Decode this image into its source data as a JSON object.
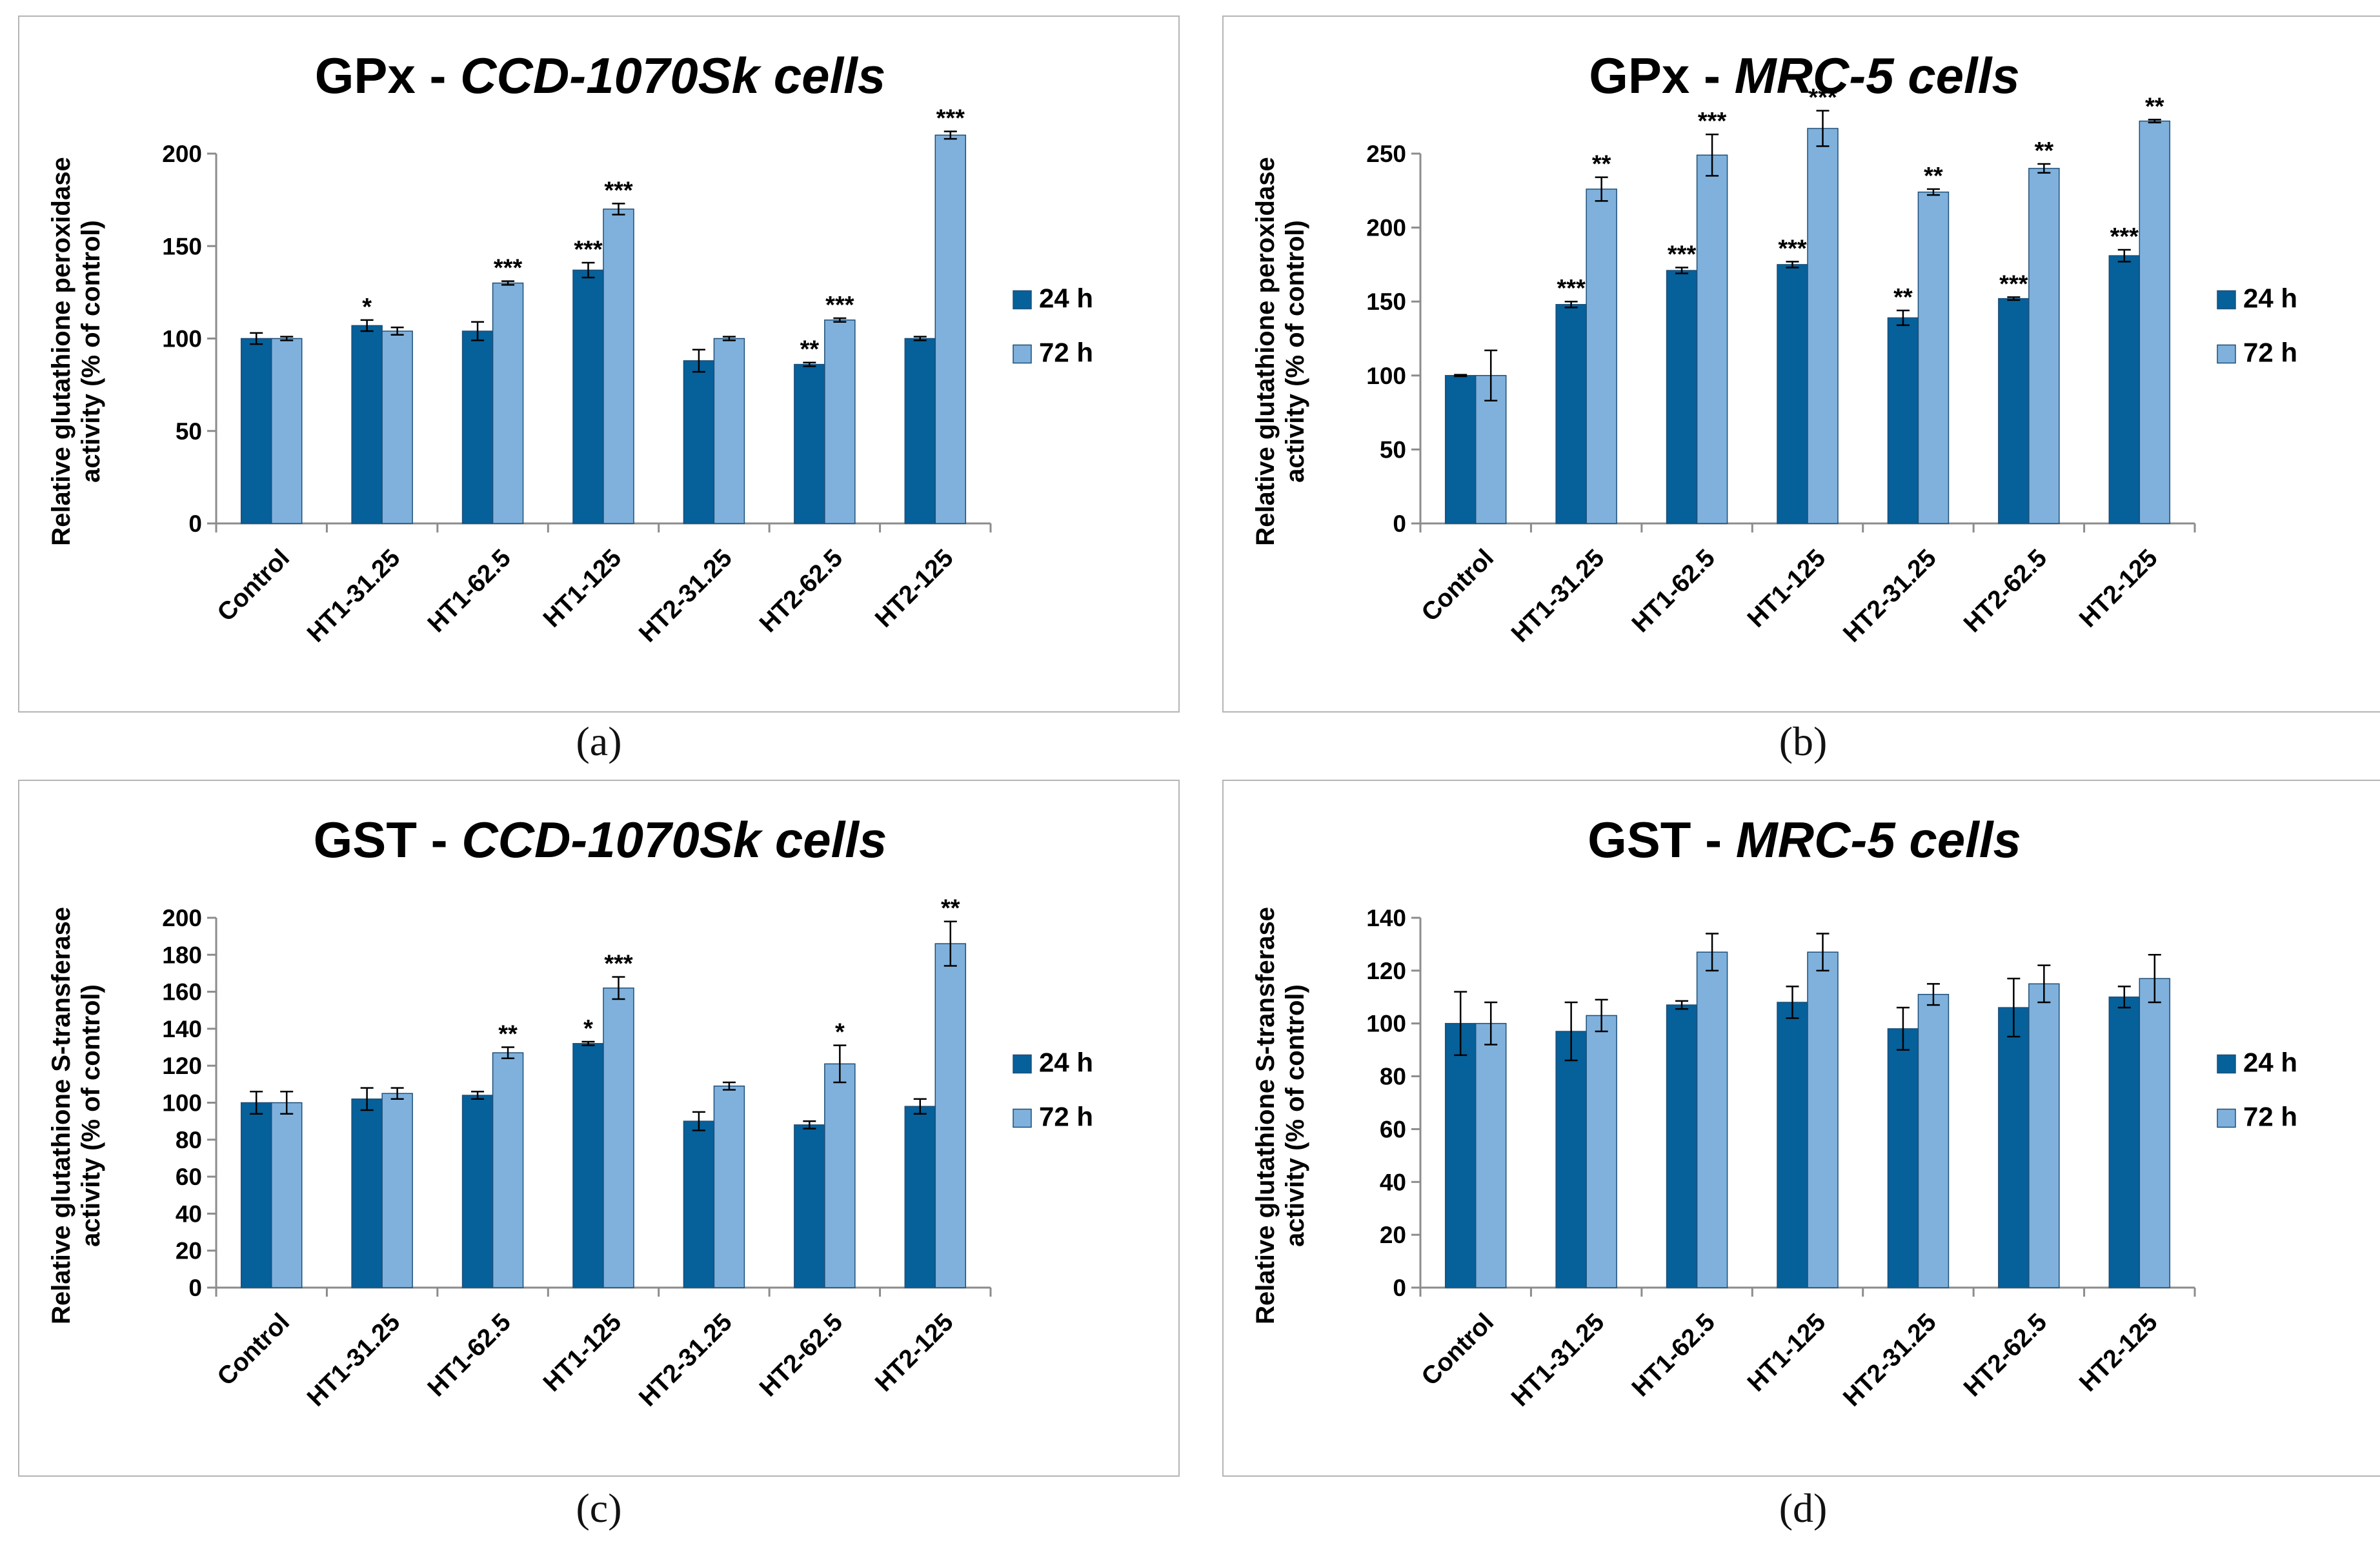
{
  "colors": {
    "h24": "#06609a",
    "h72": "#7fb1dc",
    "axis": "#8c8c8c",
    "err": "#000000"
  },
  "chart_data": [
    {
      "type": "bar",
      "panel_label": "(a)",
      "title_prefix": "GPx - ",
      "title_italic": "CCD-1070Sk cells",
      "ylabel_line1": "Relative glutathione peroxidase",
      "ylabel_line2": "activity (% of control)",
      "ylim": [
        0,
        200
      ],
      "yticks": [
        0,
        50,
        100,
        150,
        200
      ],
      "categories": [
        "Control",
        "HT1-31.25",
        "HT1-62.5",
        "HT1-125",
        "HT2-31.25",
        "HT2-62.5",
        "HT2-125"
      ],
      "series": [
        {
          "name": "24 h",
          "values": [
            100,
            107,
            104,
            137,
            88,
            86,
            100
          ],
          "errors": [
            3,
            3,
            5,
            4,
            6,
            1,
            1
          ],
          "sig": [
            "",
            "*",
            "",
            "***",
            "",
            "**",
            ""
          ]
        },
        {
          "name": "72 h",
          "values": [
            100,
            104,
            130,
            170,
            100,
            110,
            210
          ],
          "errors": [
            1,
            2,
            1,
            3,
            1,
            1,
            2
          ],
          "sig": [
            "",
            "",
            "***",
            "***",
            "",
            "***",
            "***"
          ]
        }
      ]
    },
    {
      "type": "bar",
      "panel_label": "(b)",
      "title_prefix": "GPx - ",
      "title_italic": "MRC-5 cells",
      "ylabel_line1": "Relative glutathione peroxidase",
      "ylabel_line2": "activity (% of control)",
      "ylim": [
        0,
        250
      ],
      "yticks": [
        0,
        50,
        100,
        150,
        200,
        250
      ],
      "categories": [
        "Control",
        "HT1-31.25",
        "HT1-62.5",
        "HT1-125",
        "HT2-31.25",
        "HT2-62.5",
        "HT2-125"
      ],
      "series": [
        {
          "name": "24 h",
          "values": [
            100,
            148,
            171,
            175,
            139,
            152,
            181
          ],
          "errors": [
            0.5,
            2,
            2,
            2,
            5,
            1,
            4
          ],
          "sig": [
            "",
            "***",
            "***",
            "***",
            "**",
            "***",
            "***"
          ]
        },
        {
          "name": "72 h",
          "values": [
            100,
            226,
            249,
            267,
            224,
            240,
            272
          ],
          "errors": [
            17,
            8,
            14,
            12,
            2,
            3,
            1
          ],
          "sig": [
            "",
            "**",
            "***",
            "***",
            "**",
            "**",
            "**"
          ]
        }
      ]
    },
    {
      "type": "bar",
      "panel_label": "(c)",
      "title_prefix": "GST - ",
      "title_italic": "CCD-1070Sk cells",
      "ylabel_line1": "Relative glutathione S-transferase",
      "ylabel_line2": "activity (% of control)",
      "ylim": [
        0,
        200
      ],
      "yticks": [
        0,
        20,
        40,
        60,
        80,
        100,
        120,
        140,
        160,
        180,
        200
      ],
      "categories": [
        "Control",
        "HT1-31.25",
        "HT1-62.5",
        "HT1-125",
        "HT2-31.25",
        "HT2-62.5",
        "HT2-125"
      ],
      "series": [
        {
          "name": "24 h",
          "values": [
            100,
            102,
            104,
            132,
            90,
            88,
            98
          ],
          "errors": [
            6,
            6,
            2,
            1,
            5,
            2,
            4
          ],
          "sig": [
            "",
            "",
            "",
            "*",
            "",
            "",
            ""
          ]
        },
        {
          "name": "72 h",
          "values": [
            100,
            105,
            127,
            162,
            109,
            121,
            186
          ],
          "errors": [
            6,
            3,
            3,
            6,
            2,
            10,
            12
          ],
          "sig": [
            "",
            "",
            "**",
            "***",
            "",
            "*",
            "**"
          ]
        }
      ]
    },
    {
      "type": "bar",
      "panel_label": "(d)",
      "title_prefix": "GST - ",
      "title_italic": "MRC-5 cells",
      "ylabel_line1": "Relative glutathione S-transferase",
      "ylabel_line2": "activity (% of control)",
      "ylim": [
        0,
        140
      ],
      "yticks": [
        0,
        20,
        40,
        60,
        80,
        100,
        120,
        140
      ],
      "categories": [
        "Control",
        "HT1-31.25",
        "HT1-62.5",
        "HT1-125",
        "HT2-31.25",
        "HT2-62.5",
        "HT2-125"
      ],
      "series": [
        {
          "name": "24 h",
          "values": [
            100,
            97,
            107,
            108,
            98,
            106,
            110
          ],
          "errors": [
            12,
            11,
            1.5,
            6,
            8,
            11,
            4
          ],
          "sig": [
            "",
            "",
            "",
            "",
            "",
            "",
            ""
          ]
        },
        {
          "name": "72 h",
          "values": [
            100,
            103,
            127,
            127,
            111,
            115,
            117
          ],
          "errors": [
            8,
            6,
            7,
            7,
            4,
            7,
            9
          ],
          "sig": [
            "",
            "",
            "",
            "",
            "",
            "",
            ""
          ]
        }
      ]
    }
  ]
}
